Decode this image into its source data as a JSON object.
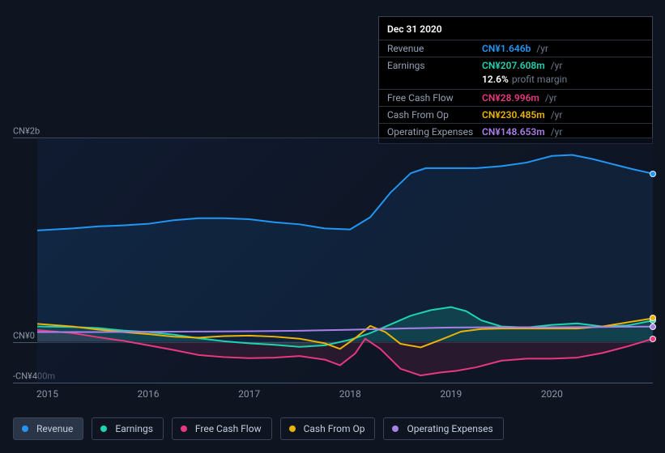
{
  "tooltip": {
    "date": "Dec 31 2020",
    "rows": [
      {
        "label": "Revenue",
        "value": "CN¥1.646b",
        "color": "#2196f3",
        "suffix": "/yr"
      },
      {
        "label": "Earnings",
        "value": "CN¥207.608m",
        "color": "#1dd3b0",
        "suffix": "/yr",
        "sub": {
          "pct": "12.6%",
          "text": "profit margin"
        }
      },
      {
        "label": "Free Cash Flow",
        "value": "CN¥28.996m",
        "color": "#e6397f",
        "suffix": "/yr"
      },
      {
        "label": "Cash From Op",
        "value": "CN¥230.485m",
        "color": "#eab308",
        "suffix": "/yr"
      },
      {
        "label": "Operating Expenses",
        "value": "CN¥148.653m",
        "color": "#a97fe8",
        "suffix": "/yr"
      }
    ]
  },
  "chart": {
    "type": "line-area",
    "background_color": "#0e1420",
    "plot_gradient": [
      "rgba(20,40,80,0.35)",
      "rgba(15,22,38,0.6)"
    ],
    "grid_color": "#4a5568",
    "label_color": "#8d97a8",
    "label_fontsize": 11,
    "x": {
      "min": 2014.9,
      "max": 2021.0,
      "ticks": [
        2015,
        2016,
        2017,
        2018,
        2019,
        2020
      ],
      "tick_labels": [
        "2015",
        "2016",
        "2017",
        "2018",
        "2019",
        "2020"
      ]
    },
    "y": {
      "min": -400,
      "max": 2000,
      "unit": "CN¥ m",
      "gridlines": [
        2000,
        0,
        -400
      ],
      "labels": [
        "CN¥2b",
        "CN¥0",
        "-CN¥400m"
      ]
    },
    "series": [
      {
        "key": "revenue",
        "label": "Revenue",
        "color": "#2196f3",
        "line_width": 2,
        "area_opacity": 0.1,
        "dot": true,
        "points": [
          [
            2014.9,
            1090
          ],
          [
            2015.25,
            1110
          ],
          [
            2015.5,
            1130
          ],
          [
            2015.75,
            1140
          ],
          [
            2016,
            1155
          ],
          [
            2016.25,
            1190
          ],
          [
            2016.5,
            1210
          ],
          [
            2016.75,
            1210
          ],
          [
            2017,
            1200
          ],
          [
            2017.25,
            1170
          ],
          [
            2017.5,
            1150
          ],
          [
            2017.75,
            1110
          ],
          [
            2018,
            1100
          ],
          [
            2018.2,
            1220
          ],
          [
            2018.4,
            1460
          ],
          [
            2018.6,
            1650
          ],
          [
            2018.75,
            1700
          ],
          [
            2019,
            1700
          ],
          [
            2019.25,
            1700
          ],
          [
            2019.5,
            1720
          ],
          [
            2019.75,
            1755
          ],
          [
            2020,
            1820
          ],
          [
            2020.2,
            1830
          ],
          [
            2020.4,
            1790
          ],
          [
            2020.6,
            1740
          ],
          [
            2020.8,
            1690
          ],
          [
            2021,
            1646
          ]
        ]
      },
      {
        "key": "earnings",
        "label": "Earnings",
        "color": "#1dd3b0",
        "line_width": 2,
        "area_opacity": 0.18,
        "dot": true,
        "points": [
          [
            2014.9,
            150
          ],
          [
            2015.25,
            145
          ],
          [
            2015.5,
            135
          ],
          [
            2015.75,
            110
          ],
          [
            2016,
            95
          ],
          [
            2016.25,
            70
          ],
          [
            2016.5,
            35
          ],
          [
            2016.75,
            5
          ],
          [
            2017,
            -15
          ],
          [
            2017.25,
            -30
          ],
          [
            2017.5,
            -50
          ],
          [
            2017.75,
            -35
          ],
          [
            2018,
            20
          ],
          [
            2018.2,
            85
          ],
          [
            2018.4,
            170
          ],
          [
            2018.6,
            255
          ],
          [
            2018.8,
            310
          ],
          [
            2019,
            340
          ],
          [
            2019.15,
            300
          ],
          [
            2019.3,
            210
          ],
          [
            2019.5,
            150
          ],
          [
            2019.75,
            140
          ],
          [
            2020,
            165
          ],
          [
            2020.25,
            180
          ],
          [
            2020.5,
            150
          ],
          [
            2020.75,
            160
          ],
          [
            2021,
            208
          ]
        ]
      },
      {
        "key": "fcf",
        "label": "Free Cash Flow",
        "color": "#e6397f",
        "line_width": 2,
        "area_opacity": 0.12,
        "dot": true,
        "points": [
          [
            2014.9,
            115
          ],
          [
            2015.25,
            85
          ],
          [
            2015.5,
            45
          ],
          [
            2015.75,
            10
          ],
          [
            2016,
            -35
          ],
          [
            2016.25,
            -80
          ],
          [
            2016.5,
            -130
          ],
          [
            2016.75,
            -150
          ],
          [
            2017,
            -160
          ],
          [
            2017.25,
            -155
          ],
          [
            2017.5,
            -140
          ],
          [
            2017.75,
            -175
          ],
          [
            2017.9,
            -230
          ],
          [
            2018.05,
            -115
          ],
          [
            2018.15,
            30
          ],
          [
            2018.3,
            -70
          ],
          [
            2018.5,
            -265
          ],
          [
            2018.7,
            -330
          ],
          [
            2018.9,
            -300
          ],
          [
            2019.05,
            -285
          ],
          [
            2019.25,
            -250
          ],
          [
            2019.5,
            -185
          ],
          [
            2019.75,
            -165
          ],
          [
            2020,
            -165
          ],
          [
            2020.25,
            -155
          ],
          [
            2020.5,
            -110
          ],
          [
            2020.75,
            -45
          ],
          [
            2021,
            29
          ]
        ]
      },
      {
        "key": "cfo",
        "label": "Cash From Op",
        "color": "#eab308",
        "line_width": 2,
        "area_opacity": 0.0,
        "dot": true,
        "points": [
          [
            2014.9,
            175
          ],
          [
            2015.25,
            150
          ],
          [
            2015.5,
            120
          ],
          [
            2015.75,
            95
          ],
          [
            2016,
            75
          ],
          [
            2016.25,
            50
          ],
          [
            2016.5,
            40
          ],
          [
            2016.75,
            55
          ],
          [
            2017,
            60
          ],
          [
            2017.25,
            50
          ],
          [
            2017.5,
            30
          ],
          [
            2017.75,
            -15
          ],
          [
            2017.9,
            -70
          ],
          [
            2018.05,
            35
          ],
          [
            2018.2,
            155
          ],
          [
            2018.35,
            95
          ],
          [
            2018.5,
            -20
          ],
          [
            2018.7,
            -55
          ],
          [
            2018.9,
            20
          ],
          [
            2019.1,
            100
          ],
          [
            2019.3,
            125
          ],
          [
            2019.5,
            130
          ],
          [
            2019.75,
            130
          ],
          [
            2020,
            130
          ],
          [
            2020.25,
            130
          ],
          [
            2020.5,
            150
          ],
          [
            2020.75,
            190
          ],
          [
            2021,
            230
          ]
        ]
      },
      {
        "key": "opex",
        "label": "Operating Expenses",
        "color": "#a97fe8",
        "line_width": 2,
        "area_opacity": 0.0,
        "dot": true,
        "points": [
          [
            2014.9,
            95
          ],
          [
            2015.5,
            95
          ],
          [
            2016,
            98
          ],
          [
            2016.5,
            100
          ],
          [
            2017,
            103
          ],
          [
            2017.5,
            108
          ],
          [
            2018,
            118
          ],
          [
            2018.5,
            130
          ],
          [
            2019,
            140
          ],
          [
            2019.5,
            143
          ],
          [
            2020,
            142
          ],
          [
            2020.5,
            145
          ],
          [
            2021,
            149
          ]
        ]
      }
    ]
  },
  "legend": {
    "items": [
      {
        "label": "Revenue",
        "color": "#2196f3",
        "active": true
      },
      {
        "label": "Earnings",
        "color": "#1dd3b0",
        "active": false
      },
      {
        "label": "Free Cash Flow",
        "color": "#e6397f",
        "active": false
      },
      {
        "label": "Cash From Op",
        "color": "#eab308",
        "active": false
      },
      {
        "label": "Operating Expenses",
        "color": "#a97fe8",
        "active": false
      }
    ]
  }
}
